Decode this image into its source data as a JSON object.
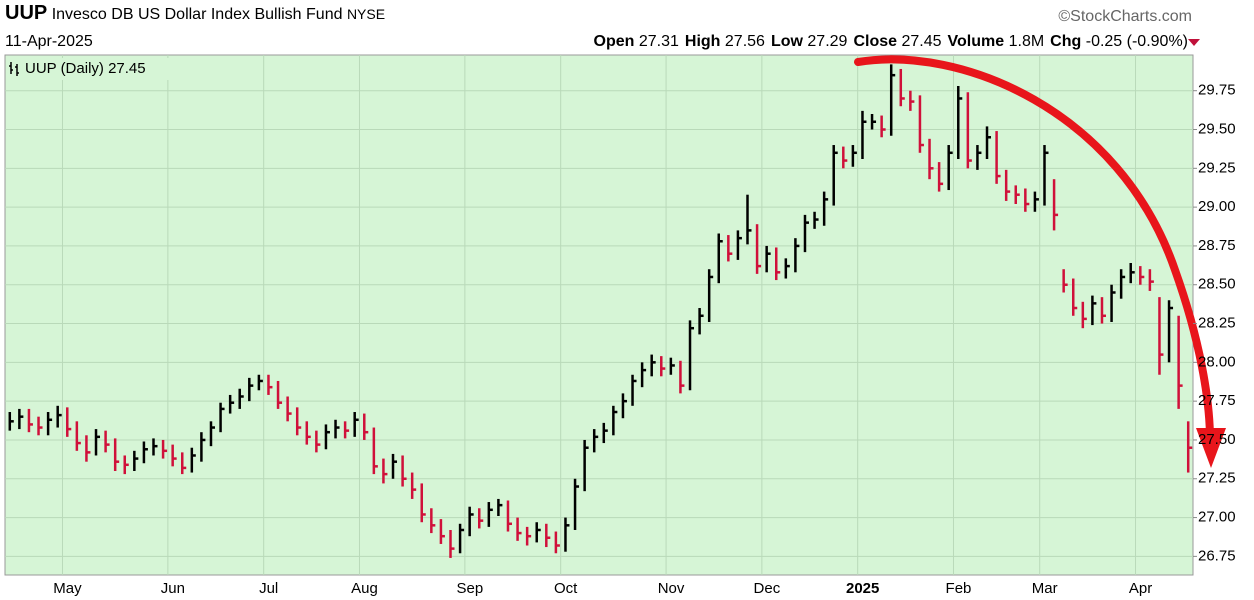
{
  "header": {
    "symbol": "UUP",
    "name": "Invesco DB US Dollar Index Bullish Fund",
    "exchange": "NYSE",
    "source": "©StockCharts.com",
    "date": "11-Apr-2025",
    "quote": [
      {
        "label": "Open",
        "value": 27.31
      },
      {
        "label": "High",
        "value": 27.56
      },
      {
        "label": "Low",
        "value": 27.29
      },
      {
        "label": "Close",
        "value": 27.45
      },
      {
        "label": "Volume",
        "value": "1.8M"
      },
      {
        "label": "Chg",
        "value": "-0.25 (-0.90%)"
      }
    ]
  },
  "chart_data": {
    "type": "hlc",
    "legend": "UUP (Daily)",
    "up_color": "#000000",
    "down_color": "#d0103a",
    "background": "#d6f5d6",
    "grid": true,
    "ylim": [
      26.63,
      29.98
    ],
    "yticks": [
      {
        "value": 26.75,
        "label": "26.75"
      },
      {
        "value": 27,
        "label": "27.00"
      },
      {
        "value": 27.25,
        "label": "27.25"
      },
      {
        "value": 27.5,
        "label": "27.50"
      },
      {
        "value": 27.75,
        "label": "27.75"
      },
      {
        "value": 28,
        "label": "28.00"
      },
      {
        "value": 28.25,
        "label": "28.25"
      },
      {
        "value": 28.5,
        "label": "28.50"
      },
      {
        "value": 28.75,
        "label": "28.75"
      },
      {
        "value": 29,
        "label": "29.00"
      },
      {
        "value": 29.25,
        "label": "29.25"
      },
      {
        "value": 29.5,
        "label": "29.50"
      },
      {
        "value": 29.75,
        "label": "29.75"
      }
    ],
    "categories": [
      null,
      null,
      null,
      null,
      null,
      null,
      "May",
      null,
      null,
      null,
      null,
      null,
      null,
      null,
      null,
      null,
      null,
      "Jun",
      null,
      null,
      null,
      null,
      null,
      null,
      null,
      null,
      null,
      "Jul",
      null,
      null,
      null,
      null,
      null,
      null,
      null,
      null,
      null,
      "Aug",
      null,
      null,
      null,
      null,
      null,
      null,
      null,
      null,
      null,
      null,
      "Sep",
      null,
      null,
      null,
      null,
      null,
      null,
      null,
      null,
      null,
      "Oct",
      null,
      null,
      null,
      null,
      null,
      null,
      null,
      null,
      null,
      null,
      "Nov",
      null,
      null,
      null,
      null,
      null,
      null,
      null,
      null,
      null,
      "Dec",
      null,
      null,
      null,
      null,
      null,
      null,
      null,
      null,
      null,
      "2025",
      null,
      null,
      null,
      null,
      null,
      null,
      null,
      null,
      null,
      "Feb",
      null,
      null,
      null,
      null,
      null,
      null,
      null,
      null,
      "Mar",
      null,
      null,
      null,
      null,
      null,
      null,
      null,
      null,
      null,
      "Apr",
      null,
      null,
      null,
      null,
      null
    ],
    "high": [
      27.68,
      27.7,
      27.7,
      27.65,
      27.68,
      27.72,
      27.71,
      27.62,
      27.53,
      27.57,
      27.56,
      27.51,
      27.4,
      27.43,
      27.49,
      27.51,
      27.5,
      27.47,
      27.42,
      27.45,
      27.55,
      27.62,
      27.74,
      27.79,
      27.83,
      27.9,
      27.92,
      27.92,
      27.88,
      27.78,
      27.71,
      27.62,
      27.56,
      27.6,
      27.63,
      27.62,
      27.68,
      27.67,
      27.58,
      27.38,
      27.41,
      27.4,
      27.29,
      27.22,
      27.06,
      26.99,
      26.92,
      26.96,
      27.07,
      27.06,
      27.1,
      27.12,
      27.11,
      27.0,
      26.94,
      26.97,
      26.96,
      26.91,
      27.0,
      27.25,
      27.5,
      27.57,
      27.61,
      27.72,
      27.8,
      27.92,
      28.0,
      28.05,
      28.04,
      28.03,
      28.01,
      28.27,
      28.35,
      28.6,
      28.83,
      28.82,
      28.85,
      29.08,
      28.89,
      28.75,
      28.74,
      28.67,
      28.8,
      28.95,
      28.97,
      29.1,
      29.4,
      29.39,
      29.4,
      29.62,
      29.6,
      29.59,
      29.92,
      29.89,
      29.75,
      29.72,
      29.44,
      29.29,
      29.4,
      29.78,
      29.74,
      29.4,
      29.52,
      29.49,
      29.24,
      29.14,
      29.12,
      29.1,
      29.4,
      29.18,
      28.6,
      28.54,
      28.39,
      28.43,
      28.42,
      28.5,
      28.6,
      28.64,
      28.62,
      28.6,
      28.42,
      28.4,
      28.3,
      27.62
    ],
    "low": [
      27.56,
      27.57,
      27.55,
      27.53,
      27.53,
      27.58,
      27.52,
      27.43,
      27.36,
      27.4,
      27.42,
      27.3,
      27.28,
      27.3,
      27.35,
      27.4,
      27.38,
      27.33,
      27.28,
      27.29,
      27.36,
      27.46,
      27.55,
      27.67,
      27.7,
      27.75,
      27.82,
      27.79,
      27.7,
      27.62,
      27.53,
      27.47,
      27.42,
      27.44,
      27.51,
      27.51,
      27.52,
      27.5,
      27.28,
      27.22,
      27.25,
      27.2,
      27.12,
      26.97,
      26.9,
      26.83,
      26.74,
      26.77,
      26.88,
      26.93,
      26.94,
      27.01,
      26.91,
      26.85,
      26.82,
      26.84,
      26.81,
      26.77,
      26.78,
      26.92,
      27.17,
      27.42,
      27.48,
      27.53,
      27.64,
      27.72,
      27.84,
      27.91,
      27.91,
      27.92,
      27.8,
      27.82,
      28.18,
      28.26,
      28.51,
      28.65,
      28.66,
      28.76,
      28.57,
      28.58,
      28.53,
      28.54,
      28.58,
      28.71,
      28.86,
      28.88,
      29.01,
      29.25,
      29.26,
      29.31,
      29.5,
      29.45,
      29.46,
      29.65,
      29.62,
      29.35,
      29.18,
      29.1,
      29.11,
      29.31,
      29.25,
      29.24,
      29.31,
      29.15,
      29.04,
      29.02,
      28.97,
      28.97,
      29.01,
      28.85,
      28.45,
      28.3,
      28.22,
      28.24,
      28.25,
      28.26,
      28.41,
      28.51,
      28.5,
      28.46,
      27.92,
      28.0,
      27.7,
      27.29
    ],
    "close": [
      27.62,
      27.65,
      27.6,
      27.58,
      27.63,
      27.66,
      27.57,
      27.48,
      27.42,
      27.52,
      27.47,
      27.36,
      27.34,
      27.38,
      27.44,
      27.46,
      27.43,
      27.38,
      27.32,
      27.4,
      27.5,
      27.58,
      27.7,
      27.74,
      27.78,
      27.85,
      27.88,
      27.84,
      27.74,
      27.67,
      27.58,
      27.52,
      27.47,
      27.55,
      27.58,
      27.56,
      27.63,
      27.55,
      27.33,
      27.28,
      27.36,
      27.25,
      27.18,
      27.02,
      26.95,
      26.88,
      26.8,
      26.92,
      27.02,
      26.98,
      27.05,
      27.08,
      26.96,
      26.9,
      26.88,
      26.92,
      26.87,
      26.82,
      26.95,
      27.2,
      27.45,
      27.52,
      27.56,
      27.68,
      27.75,
      27.88,
      27.95,
      28.0,
      27.96,
      27.98,
      27.85,
      28.22,
      28.3,
      28.55,
      28.78,
      28.7,
      28.8,
      28.85,
      28.62,
      28.7,
      28.58,
      28.62,
      28.75,
      28.9,
      28.92,
      29.05,
      29.35,
      29.3,
      29.35,
      29.55,
      29.55,
      29.5,
      29.85,
      29.7,
      29.68,
      29.4,
      29.25,
      29.15,
      29.35,
      29.7,
      29.3,
      29.35,
      29.45,
      29.2,
      29.1,
      29.08,
      29.02,
      29.05,
      29.35,
      28.95,
      28.5,
      28.35,
      28.28,
      28.38,
      28.3,
      28.45,
      28.55,
      28.58,
      28.55,
      28.52,
      28.05,
      28.35,
      27.85,
      27.45
    ]
  }
}
